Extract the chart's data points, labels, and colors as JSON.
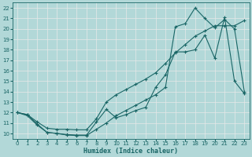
{
  "xlabel": "Humidex (Indice chaleur)",
  "bg_color": "#b2d8d8",
  "grid_color": "#e8e8e8",
  "line_color": "#1a6666",
  "xlim": [
    -0.5,
    23.5
  ],
  "ylim": [
    9.5,
    22.5
  ],
  "xticks": [
    0,
    1,
    2,
    3,
    4,
    5,
    6,
    7,
    8,
    9,
    10,
    11,
    12,
    13,
    14,
    15,
    16,
    17,
    18,
    19,
    20,
    21,
    22,
    23
  ],
  "yticks": [
    10,
    11,
    12,
    13,
    14,
    15,
    16,
    17,
    18,
    19,
    20,
    21,
    22
  ],
  "line1_x": [
    0,
    1,
    2,
    3,
    4,
    5,
    6,
    7,
    8,
    9,
    10,
    11,
    12,
    13,
    14,
    15,
    16,
    17,
    18,
    19,
    20,
    21,
    22,
    23
  ],
  "line1_y": [
    12.0,
    11.8,
    10.9,
    10.1,
    10.0,
    9.9,
    9.85,
    9.85,
    11.1,
    12.3,
    11.5,
    11.8,
    12.2,
    12.5,
    14.4,
    15.6,
    17.8,
    17.8,
    18.0,
    19.4,
    17.2,
    21.1,
    15.0,
    13.8
  ],
  "line2_x": [
    0,
    1,
    2,
    3,
    4,
    5,
    6,
    7,
    8,
    9,
    10,
    11,
    12,
    13,
    14,
    15,
    16,
    17,
    18,
    19,
    20,
    21,
    22,
    23
  ],
  "line2_y": [
    12.0,
    11.8,
    11.1,
    10.5,
    10.4,
    10.4,
    10.35,
    10.35,
    11.4,
    13.0,
    13.7,
    14.2,
    14.7,
    15.2,
    15.8,
    16.7,
    17.7,
    18.5,
    19.3,
    19.8,
    20.3,
    20.3,
    20.3,
    20.8
  ],
  "line3_x": [
    0,
    1,
    2,
    3,
    4,
    5,
    6,
    7,
    8,
    9,
    10,
    11,
    12,
    13,
    14,
    15,
    16,
    17,
    18,
    19,
    20,
    21,
    22,
    23
  ],
  "line3_y": [
    12.0,
    11.7,
    10.8,
    10.1,
    10.0,
    9.85,
    9.8,
    9.8,
    10.4,
    11.0,
    11.7,
    12.2,
    12.7,
    13.2,
    13.7,
    14.4,
    20.2,
    20.5,
    22.0,
    21.0,
    20.1,
    20.9,
    20.0,
    14.0
  ]
}
